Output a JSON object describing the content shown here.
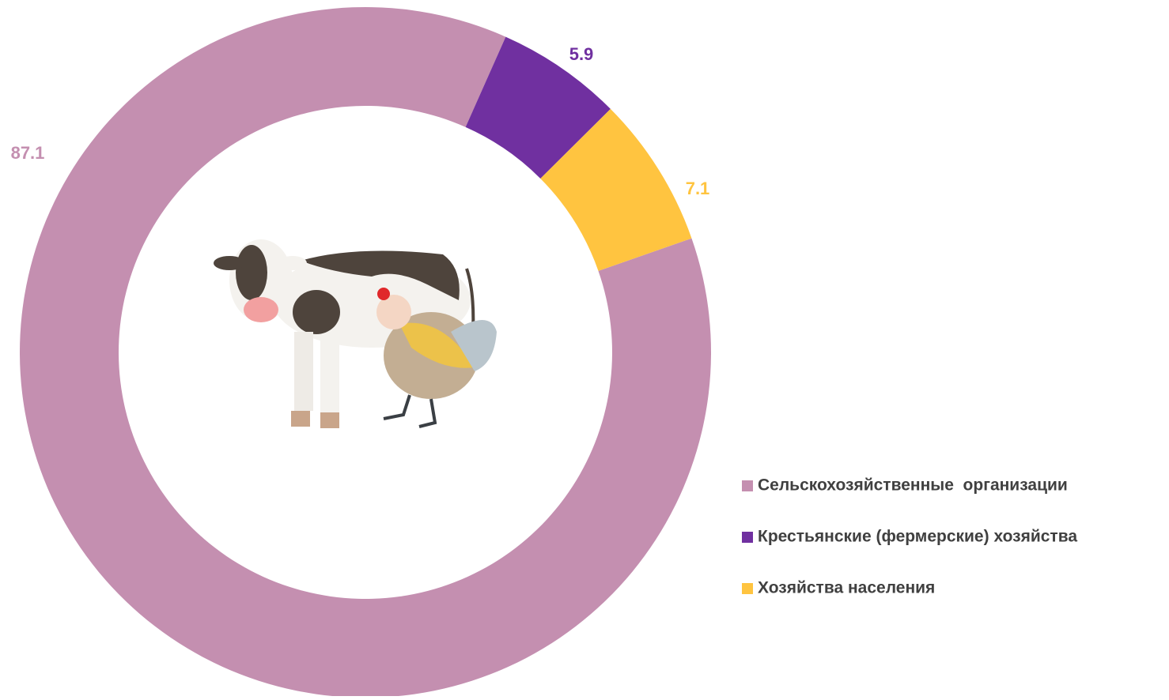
{
  "chart_data": {
    "type": "donut",
    "series": [
      {
        "name": "Сельскохозяйственные  организации",
        "color": "#c48fb0",
        "values": [
          87.1
        ]
      },
      {
        "name": "Крестьянские (фермерские) хозяйства",
        "color": "#7030a0",
        "values": [
          5.9
        ]
      },
      {
        "name": "Хозяйства населения",
        "color": "#ffc440",
        "values": [
          7.1
        ]
      }
    ],
    "legend": "right"
  }
}
